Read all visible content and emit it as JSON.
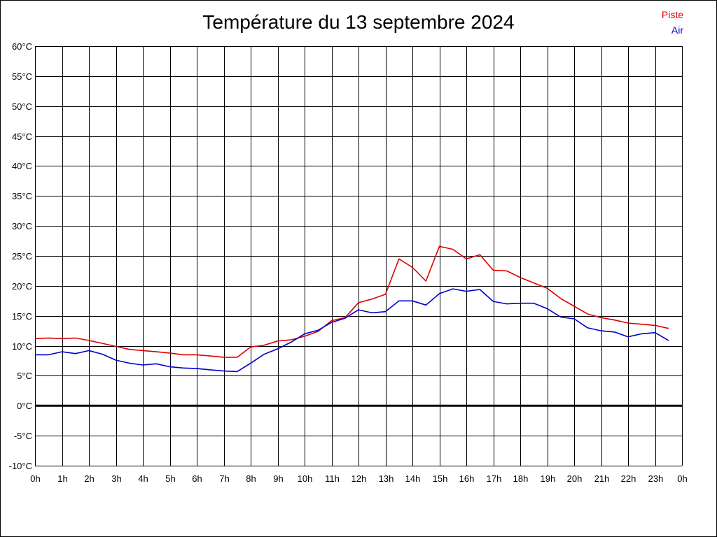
{
  "chart_data": {
    "type": "line",
    "title": "Température du 13 septembre 2024",
    "xlabel": "",
    "ylabel": "",
    "x_tick_labels": [
      "0h",
      "1h",
      "2h",
      "3h",
      "4h",
      "5h",
      "6h",
      "7h",
      "8h",
      "9h",
      "10h",
      "11h",
      "12h",
      "13h",
      "14h",
      "15h",
      "16h",
      "17h",
      "18h",
      "19h",
      "20h",
      "21h",
      "22h",
      "23h",
      "0h"
    ],
    "y_tick_labels": [
      "60°C",
      "55°C",
      "50°C",
      "45°C",
      "40°C",
      "35°C",
      "30°C",
      "25°C",
      "20°C",
      "15°C",
      "10°C",
      "5°C",
      "0°C",
      "-5°C",
      "-10°C"
    ],
    "xlim": [
      0,
      24
    ],
    "ylim": [
      -10,
      60
    ],
    "grid": true,
    "legend_position": "top-right",
    "x": [
      0,
      0.5,
      1,
      1.5,
      2,
      2.5,
      3,
      3.5,
      4,
      4.5,
      5,
      5.5,
      6,
      6.5,
      7,
      7.5,
      8,
      8.5,
      9,
      9.5,
      10,
      10.5,
      11,
      11.5,
      12,
      12.5,
      13,
      13.5,
      14,
      14.5,
      15,
      15.5,
      16,
      16.5,
      17,
      17.5,
      18,
      18.5,
      19,
      19.5,
      20,
      20.5,
      21,
      21.5,
      22,
      22.5,
      23,
      23.5
    ],
    "series": [
      {
        "name": "Piste",
        "color": "#dd0000",
        "values": [
          11.2,
          11.3,
          11.2,
          11.3,
          10.9,
          10.4,
          9.9,
          9.4,
          9.2,
          9.0,
          8.8,
          8.5,
          8.5,
          8.3,
          8.1,
          8.1,
          9.8,
          10.1,
          10.8,
          11.0,
          11.6,
          12.4,
          14.2,
          14.7,
          17.2,
          17.8,
          18.6,
          24.5,
          23.1,
          20.8,
          26.6,
          26.1,
          24.5,
          25.2,
          22.6,
          22.5,
          21.4,
          20.5,
          19.6,
          17.9,
          16.6,
          15.3,
          14.7,
          14.3,
          13.8,
          13.6,
          13.4,
          12.9
        ]
      },
      {
        "name": "Air",
        "color": "#0000cc",
        "values": [
          8.5,
          8.5,
          9.0,
          8.7,
          9.2,
          8.6,
          7.6,
          7.1,
          6.8,
          7.0,
          6.5,
          6.3,
          6.2,
          6.0,
          5.8,
          5.7,
          7.1,
          8.6,
          9.5,
          10.6,
          12.0,
          12.6,
          13.9,
          14.6,
          16.0,
          15.5,
          15.7,
          17.5,
          17.5,
          16.8,
          18.7,
          19.5,
          19.1,
          19.4,
          17.4,
          17.0,
          17.1,
          17.1,
          16.2,
          14.8,
          14.5,
          13.0,
          12.5,
          12.3,
          11.5,
          12.0,
          12.2,
          10.9
        ]
      }
    ],
    "reference_line": {
      "y": 0,
      "color": "#000000"
    }
  }
}
